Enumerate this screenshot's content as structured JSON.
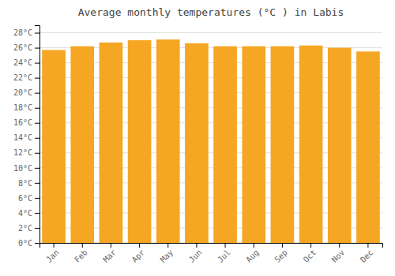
{
  "chart_data": {
    "type": "bar",
    "title": "Average monthly temperatures (°C ) in Labis",
    "categories": [
      "Jan",
      "Feb",
      "Mar",
      "Apr",
      "May",
      "Jun",
      "Jul",
      "Aug",
      "Sep",
      "Oct",
      "Nov",
      "Dec"
    ],
    "values": [
      25.7,
      26.2,
      26.7,
      27.0,
      27.1,
      26.6,
      26.2,
      26.2,
      26.2,
      26.3,
      26.0,
      25.5
    ],
    "color": "#F5A623",
    "ylim": [
      0,
      29
    ],
    "yticks": [
      {
        "value": 0,
        "label": "0°C"
      },
      {
        "value": 2,
        "label": "2°C"
      },
      {
        "value": 4,
        "label": "4°C"
      },
      {
        "value": 6,
        "label": "6°C"
      },
      {
        "value": 8,
        "label": "8°C"
      },
      {
        "value": 10,
        "label": "10°C"
      },
      {
        "value": 12,
        "label": "12°C"
      },
      {
        "value": 14,
        "label": "14°C"
      },
      {
        "value": 16,
        "label": "16°C"
      },
      {
        "value": 18,
        "label": "18°C"
      },
      {
        "value": 20,
        "label": "20°C"
      },
      {
        "value": 22,
        "label": "22°C"
      },
      {
        "value": 24,
        "label": "24°C"
      },
      {
        "value": 26,
        "label": "26°C"
      },
      {
        "value": 28,
        "label": "28°C"
      }
    ],
    "grid": true
  }
}
